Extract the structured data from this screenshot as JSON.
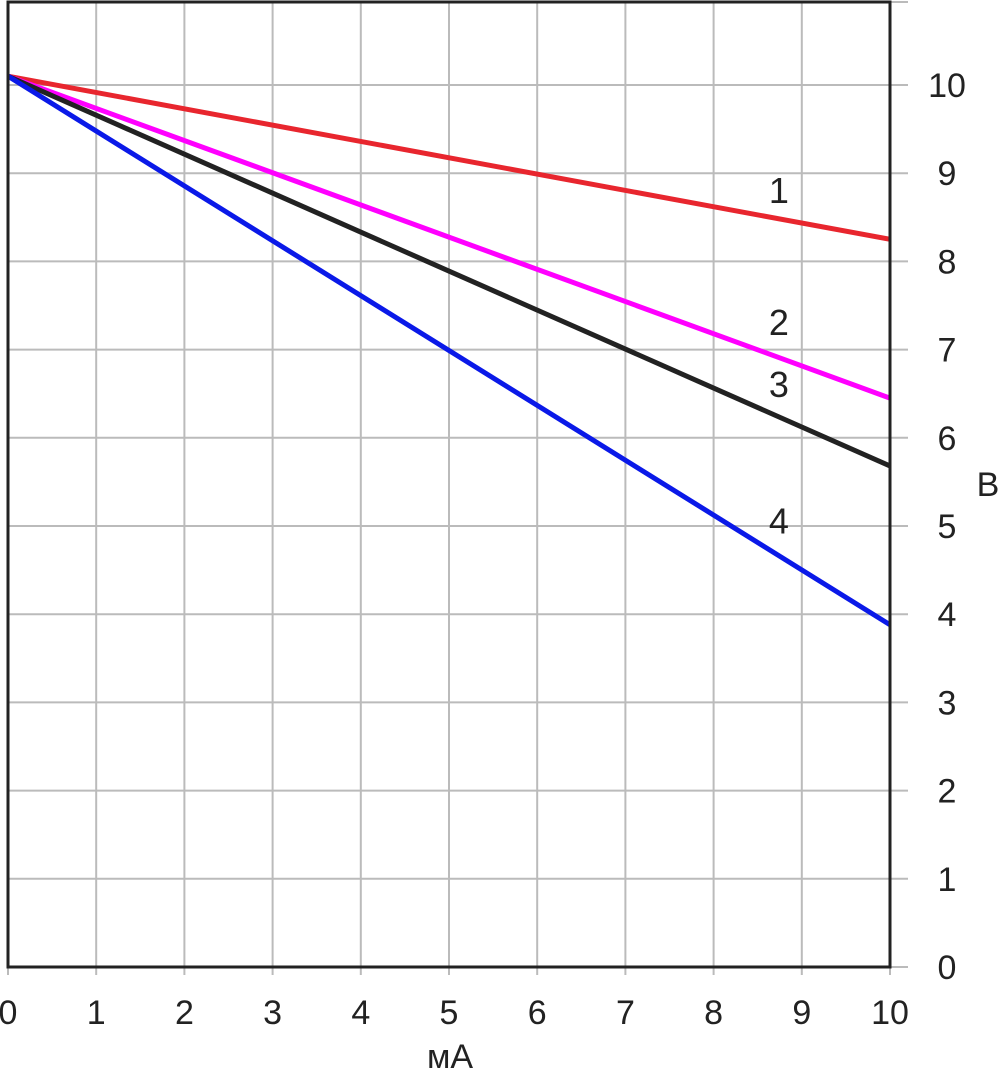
{
  "chart_data": {
    "type": "line",
    "xlabel": "мА",
    "ylabel": "В",
    "xlim": [
      0,
      10
    ],
    "ylim": [
      0,
      11
    ],
    "x_ticks": [
      "0",
      "1",
      "2",
      "3",
      "4",
      "5",
      "6",
      "7",
      "8",
      "9",
      "10"
    ],
    "y_ticks": [
      "0",
      "1",
      "2",
      "3",
      "4",
      "5",
      "6",
      "7",
      "8",
      "9",
      "10"
    ],
    "y_axis_side": "right",
    "grid": true,
    "colors": {
      "grid": "#bbbbbb",
      "frame": "#222222",
      "text": "#222222"
    },
    "series": [
      {
        "label": "1",
        "color": "#e8262e",
        "x": [
          0,
          10
        ],
        "y": [
          10.1,
          8.25
        ],
        "label_at": [
          8.65,
          8.8
        ]
      },
      {
        "label": "2",
        "color": "#ff00ff",
        "x": [
          0,
          10
        ],
        "y": [
          10.1,
          6.45
        ],
        "label_at": [
          8.65,
          7.3
        ]
      },
      {
        "label": "3",
        "color": "#222222",
        "x": [
          0,
          10
        ],
        "y": [
          10.1,
          5.68
        ],
        "label_at": [
          8.65,
          6.6
        ]
      },
      {
        "label": "4",
        "color": "#0a19e8",
        "x": [
          0,
          10
        ],
        "y": [
          10.1,
          3.88
        ],
        "label_at": [
          8.65,
          5.05
        ]
      }
    ]
  }
}
